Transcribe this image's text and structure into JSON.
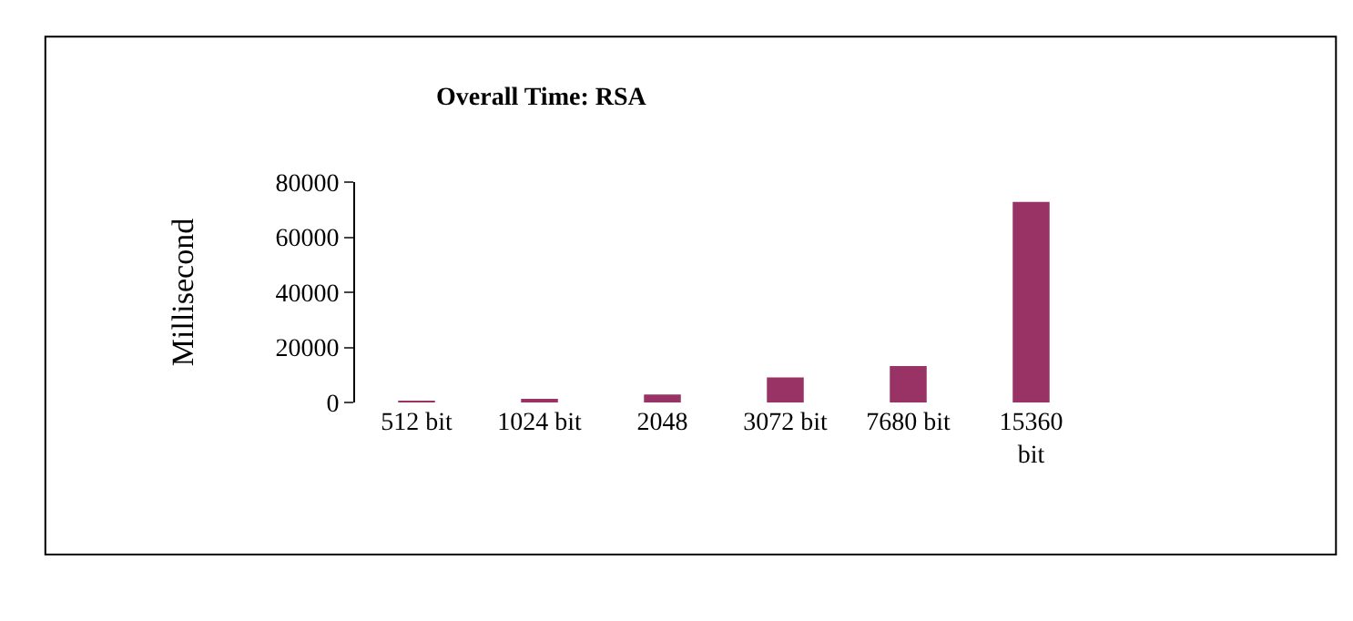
{
  "chart_data": {
    "type": "bar",
    "title": "Overall Time: RSA",
    "ylabel": "Millisecond",
    "categories": [
      "512 bit",
      "1024 bit",
      "2048",
      "3072 bit",
      "7680 bit",
      "15360 bit"
    ],
    "values": [
      300,
      800,
      2900,
      9100,
      13200,
      72800
    ],
    "color": "#993366",
    "ylim": [
      0,
      80000
    ],
    "yticks": [
      0,
      20000,
      40000,
      60000,
      80000
    ],
    "legend": false
  }
}
